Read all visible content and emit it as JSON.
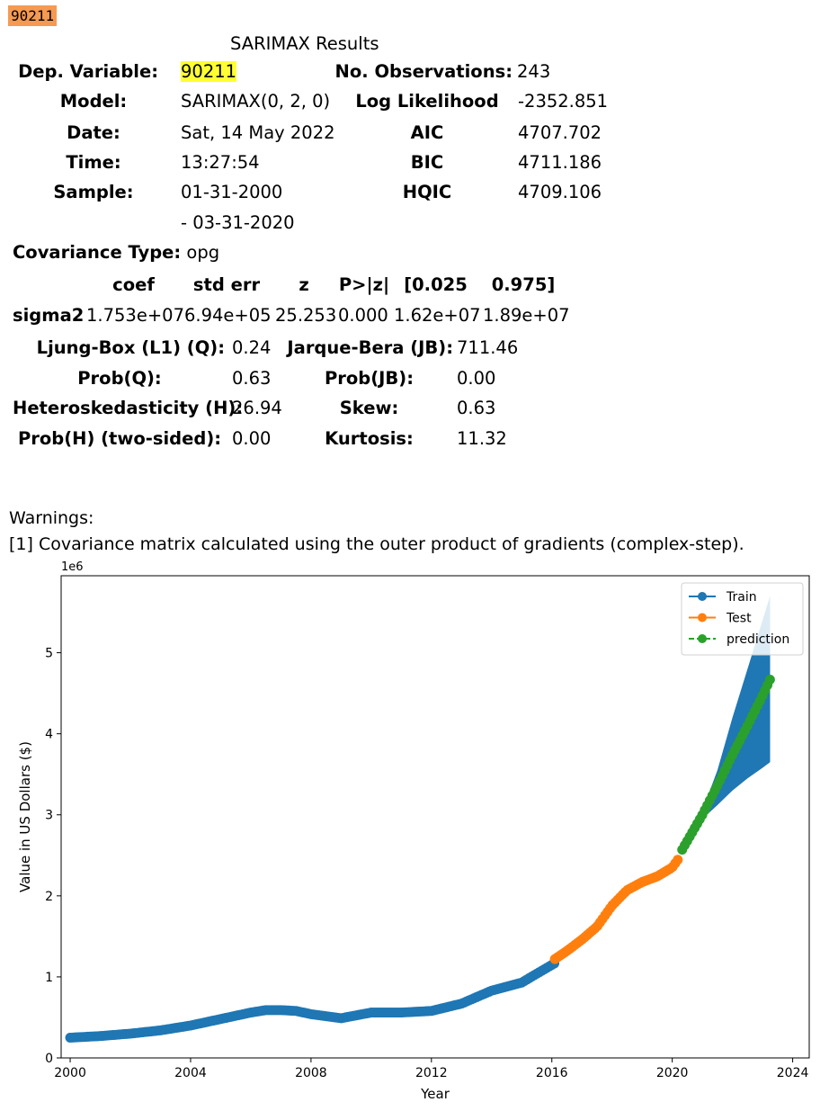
{
  "cell_label": "90211",
  "summary": {
    "title": "SARIMAX Results",
    "rows": [
      {
        "l1": "Dep. Variable:",
        "v1": "90211",
        "l2": "No. Observations:",
        "v2": "243"
      },
      {
        "l1": "Model:",
        "v1": "SARIMAX(0, 2, 0)",
        "l2": "Log Likelihood",
        "v2": "-2352.851"
      },
      {
        "l1": "Date:",
        "v1": "Sat, 14 May 2022",
        "l2": "AIC",
        "v2": "4707.702"
      },
      {
        "l1": "Time:",
        "v1": "13:27:54",
        "l2": "BIC",
        "v2": "4711.186"
      },
      {
        "l1": "Sample:",
        "v1": "01-31-2000",
        "l2": "HQIC",
        "v2": "4709.106"
      },
      {
        "l1": "",
        "v1": "- 03-31-2020",
        "l2": "",
        "v2": ""
      }
    ],
    "cov_label": "Covariance Type:",
    "cov_value": "opg"
  },
  "coef_table": {
    "headers": [
      "coef",
      "std err",
      "z",
      "P>|z|",
      "[0.025",
      "0.975]"
    ],
    "row_label": "sigma2",
    "values": [
      "1.753e+07",
      "6.94e+05",
      "25.253",
      "0.000",
      "1.62e+07",
      "1.89e+07"
    ]
  },
  "diagnostics": {
    "rows": [
      {
        "l1": "Ljung-Box (L1) (Q):",
        "v1": "0.24",
        "l2": "Jarque-Bera (JB):",
        "v2": "711.46"
      },
      {
        "l1": "Prob(Q):",
        "v1": "0.63",
        "l2": "Prob(JB):",
        "v2": "0.00"
      },
      {
        "l1": "Heteroskedasticity (H):",
        "v1": "26.94",
        "l2": "Skew:",
        "v2": "0.63"
      },
      {
        "l1": "Prob(H) (two-sided):",
        "v1": "0.00",
        "l2": "Kurtosis:",
        "v2": "11.32"
      }
    ]
  },
  "warnings": {
    "title": "Warnings:",
    "items": [
      "[1] Covariance matrix calculated using the outer product of gradients (complex-step)."
    ]
  },
  "chart_data": {
    "type": "line",
    "title": "",
    "xlabel": "Year",
    "ylabel": "Value in US Dollars ($)",
    "offset_label": "1e6",
    "xlim": [
      1999.7,
      2024.55
    ],
    "ylim": [
      0,
      5.95
    ],
    "xticks": [
      2000,
      2004,
      2008,
      2012,
      2016,
      2020,
      2024
    ],
    "yticks": [
      0,
      1,
      2,
      3,
      4,
      5
    ],
    "legend_position": "top-right",
    "colors": {
      "train": "#1f77b4",
      "test": "#ff7f0e",
      "prediction": "#2ca02c",
      "confidence": "#1f77b4"
    },
    "series": [
      {
        "name": "Train",
        "key": "train",
        "x": [
          2000.0,
          2001.0,
          2002.0,
          2003.0,
          2004.0,
          2005.0,
          2006.0,
          2006.5,
          2007.0,
          2007.5,
          2008.0,
          2009.0,
          2010.0,
          2011.0,
          2012.0,
          2013.0,
          2014.0,
          2015.0,
          2016.1
        ],
        "y": [
          0.25,
          0.27,
          0.3,
          0.34,
          0.4,
          0.48,
          0.56,
          0.59,
          0.59,
          0.58,
          0.54,
          0.49,
          0.56,
          0.56,
          0.58,
          0.67,
          0.83,
          0.93,
          1.17
        ]
      },
      {
        "name": "Test",
        "key": "test",
        "x": [
          2016.1,
          2016.5,
          2017.0,
          2017.5,
          2018.0,
          2018.5,
          2019.0,
          2019.5,
          2020.0,
          2020.25
        ],
        "y": [
          1.22,
          1.32,
          1.46,
          1.62,
          1.88,
          2.07,
          2.17,
          2.24,
          2.35,
          2.48
        ]
      },
      {
        "name": "prediction",
        "key": "prediction",
        "x": [
          2020.33,
          2021.0,
          2021.5,
          2022.0,
          2022.5,
          2023.0,
          2023.25
        ],
        "y": [
          2.57,
          3.0,
          3.36,
          3.74,
          4.1,
          4.47,
          4.67
        ]
      }
    ],
    "confidence_band": {
      "x": [
        2020.33,
        2021.0,
        2021.5,
        2022.0,
        2022.5,
        2023.0,
        2023.25
      ],
      "lower": [
        2.57,
        2.95,
        3.12,
        3.3,
        3.45,
        3.58,
        3.65
      ],
      "upper": [
        2.57,
        3.05,
        3.55,
        4.2,
        4.8,
        5.4,
        5.7
      ]
    }
  }
}
